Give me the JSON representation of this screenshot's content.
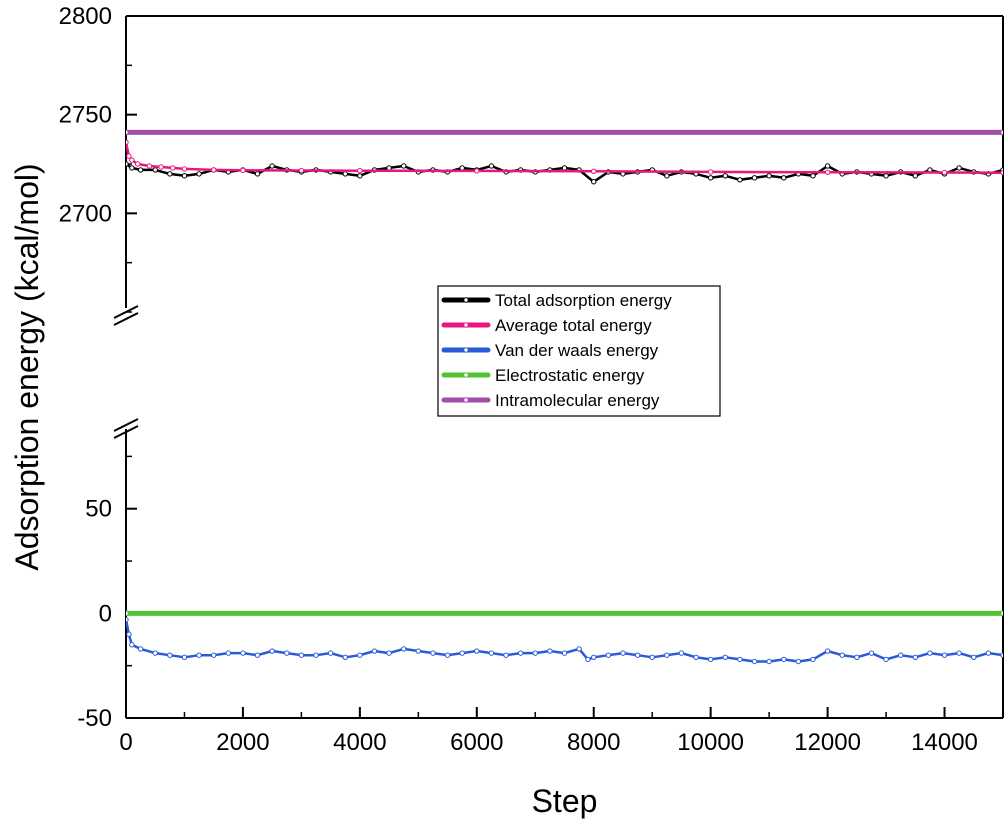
{
  "chart_data": {
    "type": "line",
    "xlabel": "Step",
    "ylabel": "Adsorption energy (kcal/mol)",
    "xlim": [
      0,
      15000
    ],
    "x_ticks": [
      0,
      2000,
      4000,
      6000,
      8000,
      10000,
      12000,
      14000
    ],
    "x_tick_labels": [
      "0",
      "2000",
      "4000",
      "6000",
      "8000",
      "10000",
      "12000",
      "14000"
    ],
    "axis_break": true,
    "y_segments": [
      {
        "range": [
          2650,
          2800
        ],
        "ticks": [
          2700,
          2750,
          2800
        ],
        "tick_labels": [
          "2700",
          "2750",
          "2800"
        ]
      },
      {
        "range": [
          -50,
          90
        ],
        "ticks": [
          -50,
          0,
          50
        ],
        "tick_labels": [
          "-50",
          "0",
          "50"
        ]
      }
    ],
    "legend_location": "center",
    "series": [
      {
        "name": "Total adsorption energy",
        "color": "#000000",
        "segment": 0,
        "x": [
          0,
          100,
          250,
          500,
          750,
          1000,
          1250,
          1500,
          1750,
          2000,
          2250,
          2500,
          2750,
          3000,
          3250,
          3500,
          3750,
          4000,
          4250,
          4500,
          4750,
          5000,
          5250,
          5500,
          5750,
          6000,
          6250,
          6500,
          6750,
          7000,
          7250,
          7500,
          7750,
          8000,
          8250,
          8500,
          8750,
          9000,
          9250,
          9500,
          9750,
          10000,
          10250,
          10500,
          10750,
          11000,
          11250,
          11500,
          11750,
          12000,
          12250,
          12500,
          12750,
          13000,
          13250,
          13500,
          13750,
          14000,
          14250,
          14500,
          14750,
          15000
        ],
        "values": [
          2725,
          2723,
          2722,
          2722,
          2720,
          2719,
          2720,
          2722,
          2721,
          2722,
          2720,
          2724,
          2722,
          2721,
          2722,
          2721,
          2720,
          2719,
          2722,
          2723,
          2724,
          2721,
          2722,
          2721,
          2723,
          2722,
          2724,
          2721,
          2722,
          2721,
          2722,
          2723,
          2722,
          2716,
          2721,
          2720,
          2721,
          2722,
          2719,
          2721,
          2720,
          2718,
          2719,
          2717,
          2718,
          2719,
          2718,
          2720,
          2719,
          2724,
          2720,
          2721,
          2720,
          2719,
          2721,
          2719,
          2722,
          2720,
          2723,
          2721,
          2720,
          2722
        ]
      },
      {
        "name": "Average total energy",
        "color": "#e8167f",
        "segment": 0,
        "x": [
          0,
          50,
          100,
          200,
          400,
          600,
          800,
          1000,
          1500,
          2000,
          3000,
          4000,
          6000,
          8000,
          10000,
          12000,
          14000,
          15000
        ],
        "values": [
          2736,
          2729,
          2727,
          2725,
          2724,
          2723.5,
          2723,
          2722.5,
          2722,
          2721.8,
          2721.7,
          2721.6,
          2721.5,
          2721.3,
          2721,
          2720.8,
          2720.7,
          2720.6
        ]
      },
      {
        "name": "Van der waals energy",
        "color": "#2a5bd7",
        "segment": 1,
        "x": [
          0,
          50,
          100,
          250,
          500,
          750,
          1000,
          1250,
          1500,
          1750,
          2000,
          2250,
          2500,
          2750,
          3000,
          3250,
          3500,
          3750,
          4000,
          4250,
          4500,
          4750,
          5000,
          5250,
          5500,
          5750,
          6000,
          6250,
          6500,
          6750,
          7000,
          7250,
          7500,
          7750,
          7900,
          8000,
          8250,
          8500,
          8750,
          9000,
          9250,
          9500,
          9750,
          10000,
          10250,
          10500,
          10750,
          11000,
          11250,
          11500,
          11750,
          12000,
          12250,
          12500,
          12750,
          13000,
          13250,
          13500,
          13750,
          14000,
          14250,
          14500,
          14750,
          15000
        ],
        "values": [
          -3,
          -10,
          -15,
          -17,
          -19,
          -20,
          -21,
          -20,
          -20,
          -19,
          -19,
          -20,
          -18,
          -19,
          -20,
          -20,
          -19,
          -21,
          -20,
          -18,
          -19,
          -17,
          -18,
          -19,
          -20,
          -19,
          -18,
          -19,
          -20,
          -19,
          -19,
          -18,
          -19,
          -17,
          -22,
          -21,
          -20,
          -19,
          -20,
          -21,
          -20,
          -19,
          -21,
          -22,
          -21,
          -22,
          -23,
          -23,
          -22,
          -23,
          -22,
          -18,
          -20,
          -21,
          -19,
          -22,
          -20,
          -21,
          -19,
          -20,
          -19,
          -21,
          -19,
          -20
        ]
      },
      {
        "name": "Electrostatic energy",
        "color": "#52c234",
        "segment": 1,
        "x": [
          0,
          15000
        ],
        "values": [
          0,
          0
        ]
      },
      {
        "name": "Intramolecular energy",
        "color": "#a34ea8",
        "segment": 0,
        "x": [
          0,
          15000
        ],
        "values": [
          2741,
          2741
        ]
      }
    ]
  }
}
